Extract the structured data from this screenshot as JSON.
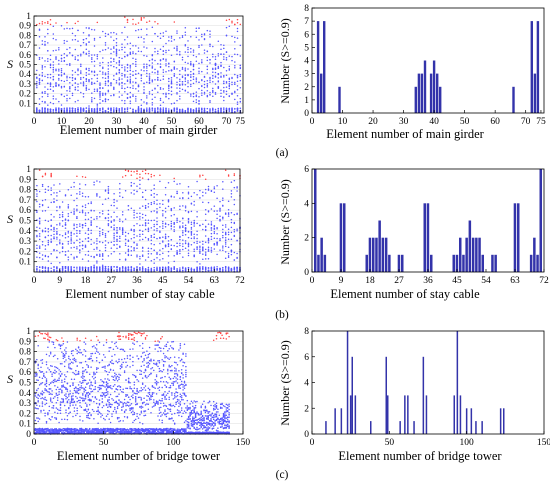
{
  "panels": [
    {
      "caption": "(a)",
      "scatter": {
        "type": "scatter",
        "xlabel": "Element number of main girder",
        "ylabel": "S",
        "xlim": [
          0,
          76
        ],
        "ylim": [
          0,
          1
        ],
        "xticks": [
          0,
          10,
          20,
          30,
          40,
          50,
          60,
          70,
          75
        ],
        "xtick_labels": [
          "0",
          "10",
          "20",
          "30",
          "40",
          "50",
          "60",
          "70",
          "75"
        ],
        "yticks": [
          0.1,
          0.2,
          0.3,
          0.4,
          0.5,
          0.6,
          0.7,
          0.8,
          0.9,
          1
        ],
        "ytick_labels": [
          "0.1",
          "0.2",
          "0.3",
          "0.4",
          "0.5",
          "0.6",
          "0.7",
          "0.8",
          "0.9",
          "1"
        ],
        "threshold": 0.9,
        "n_elements": 75,
        "rows_per_element": 24,
        "colors": {
          "below": "#5555ff",
          "above": "#ff4444"
        }
      },
      "bar": {
        "type": "bar",
        "xlabel": "Element number of main girder",
        "ylabel": "Number (S>=0.9)",
        "xlim": [
          0,
          76
        ],
        "ylim": [
          0,
          8
        ],
        "xticks": [
          0,
          10,
          20,
          30,
          40,
          50,
          60,
          70,
          75
        ],
        "xtick_labels": [
          "0",
          "10",
          "20",
          "30",
          "40",
          "50",
          "60",
          "70",
          "75"
        ],
        "yticks": [
          0,
          1,
          2,
          3,
          4,
          5,
          6,
          7,
          8
        ],
        "ytick_labels": [
          "0",
          "1",
          "2",
          "3",
          "4",
          "5",
          "6",
          "7",
          "8"
        ],
        "bars": [
          [
            2,
            7
          ],
          [
            3,
            3
          ],
          [
            4,
            7
          ],
          [
            9,
            2
          ],
          [
            34,
            2
          ],
          [
            35,
            3
          ],
          [
            36,
            3
          ],
          [
            37,
            4
          ],
          [
            39,
            3
          ],
          [
            40,
            4
          ],
          [
            41,
            3
          ],
          [
            42,
            2
          ],
          [
            66,
            2
          ],
          [
            72,
            7
          ],
          [
            73,
            3
          ],
          [
            74,
            7
          ]
        ],
        "color": "#3333aa"
      }
    },
    {
      "caption": "(b)",
      "scatter": {
        "type": "scatter",
        "xlabel": "Element number of stay cable",
        "ylabel": "S",
        "xlim": [
          0,
          72
        ],
        "ylim": [
          0,
          1
        ],
        "xticks": [
          0,
          9,
          18,
          27,
          36,
          45,
          54,
          63,
          72
        ],
        "xtick_labels": [
          "0",
          "9",
          "18",
          "27",
          "36",
          "45",
          "54",
          "63",
          "72"
        ],
        "yticks": [
          0.1,
          0.2,
          0.3,
          0.4,
          0.5,
          0.6,
          0.7,
          0.8,
          0.9,
          1
        ],
        "ytick_labels": [
          "0.1",
          "0.2",
          "0.3",
          "0.4",
          "0.5",
          "0.6",
          "0.7",
          "0.8",
          "0.9",
          "1"
        ],
        "threshold": 0.9,
        "n_elements": 72,
        "rows_per_element": 24,
        "colors": {
          "below": "#5555ff",
          "above": "#ff4444"
        }
      },
      "bar": {
        "type": "bar",
        "xlabel": "Element number of stay cable",
        "ylabel": "Number (S>=0.9)",
        "xlim": [
          0,
          72
        ],
        "ylim": [
          0,
          6
        ],
        "xticks": [
          0,
          9,
          18,
          27,
          36,
          45,
          54,
          63,
          72
        ],
        "xtick_labels": [
          "0",
          "9",
          "18",
          "27",
          "36",
          "45",
          "54",
          "63",
          "72"
        ],
        "yticks": [
          0,
          2,
          4,
          6
        ],
        "ytick_labels": [
          "0",
          "2",
          "4",
          "6"
        ],
        "bars": [
          [
            1,
            6
          ],
          [
            2,
            1
          ],
          [
            3,
            2
          ],
          [
            4,
            1
          ],
          [
            9,
            4
          ],
          [
            10,
            4
          ],
          [
            17,
            1
          ],
          [
            18,
            2
          ],
          [
            19,
            2
          ],
          [
            20,
            2
          ],
          [
            21,
            3
          ],
          [
            22,
            2
          ],
          [
            23,
            2
          ],
          [
            24,
            1
          ],
          [
            27,
            1
          ],
          [
            28,
            1
          ],
          [
            35,
            4
          ],
          [
            36,
            4
          ],
          [
            37,
            1
          ],
          [
            44,
            1
          ],
          [
            45,
            1
          ],
          [
            46,
            2
          ],
          [
            47,
            1
          ],
          [
            48,
            2
          ],
          [
            49,
            3
          ],
          [
            50,
            2
          ],
          [
            51,
            2
          ],
          [
            52,
            2
          ],
          [
            53,
            1
          ],
          [
            56,
            1
          ],
          [
            57,
            1
          ],
          [
            63,
            4
          ],
          [
            64,
            4
          ],
          [
            68,
            1
          ],
          [
            69,
            2
          ],
          [
            70,
            1
          ],
          [
            71,
            6
          ]
        ],
        "color": "#3333aa"
      }
    },
    {
      "caption": "(c)",
      "scatter": {
        "type": "scatter",
        "xlabel": "Element number of bridge tower",
        "ylabel": "S",
        "xlim": [
          0,
          150
        ],
        "ylim": [
          0,
          1
        ],
        "xticks": [
          0,
          50,
          100,
          150
        ],
        "xtick_labels": [
          "0",
          "50",
          "100",
          "150"
        ],
        "yticks": [
          0,
          0.1,
          0.2,
          0.3,
          0.4,
          0.5,
          0.6,
          0.7,
          0.8,
          0.9,
          1
        ],
        "ytick_labels": [
          "0",
          "0.1",
          "0.2",
          "0.3",
          "0.4",
          "0.5",
          "0.6",
          "0.7",
          "0.8",
          "0.9",
          "1"
        ],
        "threshold": 0.9,
        "n_elements": 140,
        "rows_per_element": 22,
        "colors": {
          "below": "#5555ff",
          "above": "#ff4444"
        }
      },
      "bar": {
        "type": "bar",
        "xlabel": "Element number of bridge tower",
        "ylabel": "Number (S>=0.9)",
        "xlim": [
          0,
          150
        ],
        "ylim": [
          0,
          8
        ],
        "xticks": [
          0,
          50,
          100,
          150
        ],
        "xtick_labels": [
          "0",
          "50",
          "100",
          "150"
        ],
        "yticks": [
          0,
          2,
          4,
          6,
          8
        ],
        "ytick_labels": [
          "0",
          "2",
          "4",
          "6",
          "8"
        ],
        "bars": [
          [
            9,
            1
          ],
          [
            15,
            2
          ],
          [
            19,
            2
          ],
          [
            23,
            8
          ],
          [
            25,
            3
          ],
          [
            26,
            6
          ],
          [
            28,
            3
          ],
          [
            38,
            1
          ],
          [
            48,
            6
          ],
          [
            49,
            3
          ],
          [
            57,
            1
          ],
          [
            60,
            3
          ],
          [
            62,
            3
          ],
          [
            66,
            1
          ],
          [
            72,
            6
          ],
          [
            74,
            3
          ],
          [
            92,
            3
          ],
          [
            94,
            8
          ],
          [
            96,
            3
          ],
          [
            100,
            2
          ],
          [
            103,
            2
          ],
          [
            106,
            1
          ],
          [
            110,
            1
          ],
          [
            122,
            2
          ],
          [
            124,
            2
          ]
        ],
        "color": "#3333aa"
      }
    }
  ]
}
